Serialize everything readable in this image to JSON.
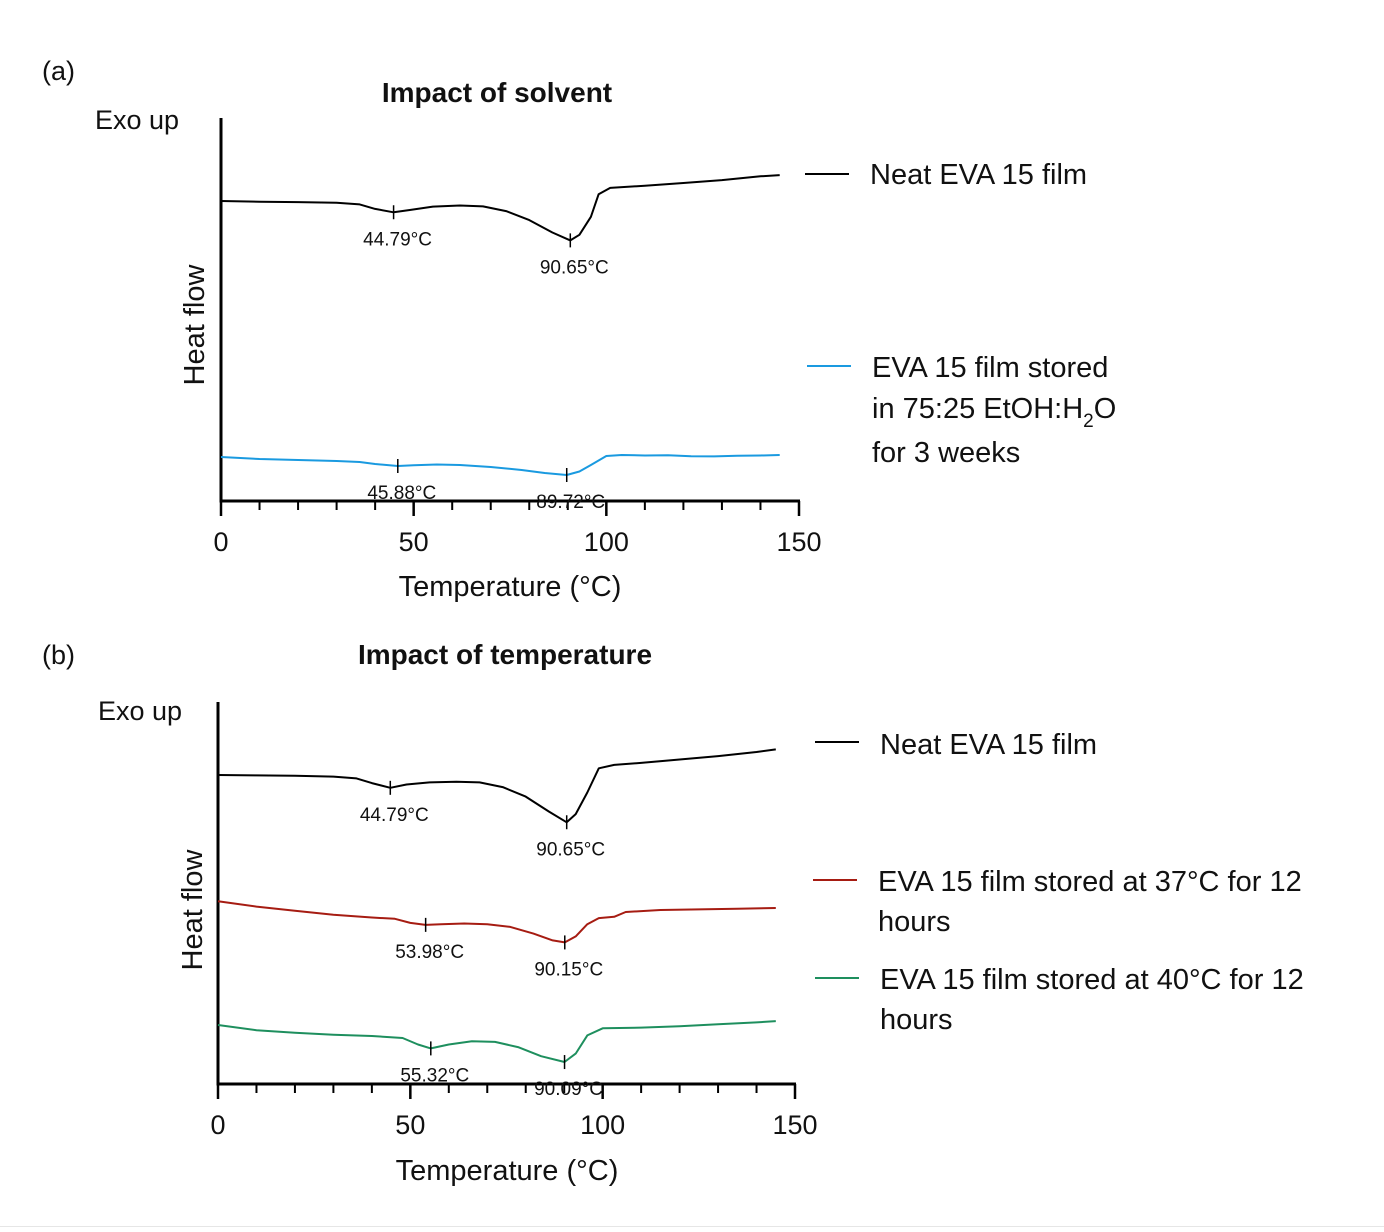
{
  "chart_data": [
    {
      "type": "line",
      "panel_label": "(a)",
      "title": "Impact of solvent",
      "exo_label": "Exo up",
      "ylabel": "Heat flow",
      "xlabel": "Temperature (°C)",
      "xlim": [
        0,
        150
      ],
      "x_ticks": [
        0,
        50,
        100,
        150
      ],
      "series": [
        {
          "name_lines": [
            "Neat EVA 15 film"
          ],
          "color": "#000000",
          "points": [
            [
              0,
              0
            ],
            [
              10,
              -0.3
            ],
            [
              20,
              -0.5
            ],
            [
              30,
              -0.8
            ],
            [
              36,
              -1.5
            ],
            [
              40,
              -3.5
            ],
            [
              44.79,
              -5
            ],
            [
              49,
              -4
            ],
            [
              55,
              -2.5
            ],
            [
              62,
              -2
            ],
            [
              68,
              -2.4
            ],
            [
              74,
              -4.5
            ],
            [
              80,
              -8.5
            ],
            [
              86,
              -14
            ],
            [
              90.65,
              -17.5
            ],
            [
              93,
              -15
            ],
            [
              96,
              -7
            ],
            [
              98,
              3
            ],
            [
              101,
              5.8
            ],
            [
              110,
              6.8
            ],
            [
              120,
              8
            ],
            [
              130,
              9.3
            ],
            [
              140,
              11
            ],
            [
              145,
              11.5
            ]
          ],
          "annotations": [
            {
              "x": 44.79,
              "label": "44.79°C"
            },
            {
              "x": 90.65,
              "label": "90.65°C"
            }
          ]
        },
        {
          "name_lines": [
            "EVA 15 film stored",
            "in 75:25 EtOH:H",
            "O",
            "for 3 weeks"
          ],
          "color": "#1a9ae0",
          "points": [
            [
              0,
              -86
            ],
            [
              10,
              -88
            ],
            [
              20,
              -89
            ],
            [
              30,
              -90
            ],
            [
              36,
              -91
            ],
            [
              40,
              -93
            ],
            [
              45.88,
              -95
            ],
            [
              50,
              -94.3
            ],
            [
              56,
              -93.5
            ],
            [
              62,
              -94
            ],
            [
              70,
              -96
            ],
            [
              78,
              -99
            ],
            [
              84,
              -102
            ],
            [
              89.72,
              -104
            ],
            [
              93,
              -100.5
            ],
            [
              96,
              -94
            ],
            [
              100,
              -85
            ],
            [
              104,
              -84
            ],
            [
              110,
              -84.5
            ],
            [
              116,
              -84.3
            ],
            [
              122,
              -85.2
            ],
            [
              128,
              -85.4
            ],
            [
              134,
              -84.8
            ],
            [
              140,
              -84.5
            ],
            [
              145,
              -84
            ]
          ],
          "annotations": [
            {
              "x": 45.88,
              "label": "45.88°C"
            },
            {
              "x": 89.72,
              "label": "89.72°C"
            }
          ]
        }
      ]
    },
    {
      "type": "line",
      "panel_label": "(b)",
      "title": "Impact of temperature",
      "exo_label": "Exo up",
      "ylabel": "Heat flow",
      "xlabel": "Temperature (°C)",
      "xlim": [
        0,
        150
      ],
      "x_ticks": [
        0,
        50,
        100,
        150
      ],
      "series": [
        {
          "name_lines": [
            "Neat EVA 15 film"
          ],
          "color": "#000000",
          "points": [
            [
              0,
              0
            ],
            [
              10,
              -0.3
            ],
            [
              20,
              -0.6
            ],
            [
              30,
              -1.2
            ],
            [
              36,
              -2.5
            ],
            [
              40,
              -6
            ],
            [
              44.79,
              -9.5
            ],
            [
              49,
              -7
            ],
            [
              55,
              -5.5
            ],
            [
              62,
              -5
            ],
            [
              68,
              -5.5
            ],
            [
              74,
              -9
            ],
            [
              80,
              -16
            ],
            [
              86,
              -27
            ],
            [
              90.65,
              -35
            ],
            [
              93,
              -29
            ],
            [
              96,
              -13
            ],
            [
              99,
              5
            ],
            [
              103,
              7.5
            ],
            [
              110,
              9
            ],
            [
              120,
              11.5
            ],
            [
              130,
              14
            ],
            [
              140,
              17
            ],
            [
              145,
              19
            ]
          ],
          "annotations": [
            {
              "x": 44.79,
              "label": "44.79°C"
            },
            {
              "x": 90.65,
              "label": "90.65°C"
            }
          ]
        },
        {
          "name_lines": [
            "EVA 15 film stored at 37°C for 12",
            "hours"
          ],
          "color": "#a61c12",
          "points": [
            [
              0,
              -75
            ],
            [
              10,
              -79
            ],
            [
              20,
              -82
            ],
            [
              30,
              -85
            ],
            [
              40,
              -87
            ],
            [
              46,
              -88
            ],
            [
              50,
              -91
            ],
            [
              53.98,
              -92.5
            ],
            [
              58,
              -92
            ],
            [
              64,
              -91.5
            ],
            [
              70,
              -92
            ],
            [
              76,
              -94
            ],
            [
              82,
              -99
            ],
            [
              87,
              -104
            ],
            [
              90.15,
              -105.5
            ],
            [
              93,
              -101
            ],
            [
              96,
              -92
            ],
            [
              99,
              -87.5
            ],
            [
              103,
              -86.5
            ],
            [
              106,
              -83
            ],
            [
              115,
              -81.5
            ],
            [
              125,
              -81
            ],
            [
              135,
              -80.5
            ],
            [
              145,
              -80
            ]
          ],
          "annotations": [
            {
              "x": 53.98,
              "label": "53.98°C"
            },
            {
              "x": 90.15,
              "label": "90.15°C"
            }
          ]
        },
        {
          "name_lines": [
            "EVA 15 film stored at 40°C for 12",
            "hours"
          ],
          "color": "#1e8f5e",
          "points": [
            [
              0,
              -150
            ],
            [
              10,
              -154
            ],
            [
              20,
              -156
            ],
            [
              30,
              -157.5
            ],
            [
              40,
              -158.5
            ],
            [
              48,
              -160
            ],
            [
              52,
              -165
            ],
            [
              55.32,
              -168
            ],
            [
              60,
              -165
            ],
            [
              66,
              -162.5
            ],
            [
              72,
              -163
            ],
            [
              78,
              -167
            ],
            [
              84,
              -174
            ],
            [
              90.09,
              -178.5
            ],
            [
              93,
              -172
            ],
            [
              96,
              -158
            ],
            [
              100,
              -152.5
            ],
            [
              110,
              -152
            ],
            [
              120,
              -151
            ],
            [
              130,
              -149.5
            ],
            [
              140,
              -148
            ],
            [
              145,
              -147
            ]
          ],
          "annotations": [
            {
              "x": 55.32,
              "label": "55.32°C"
            },
            {
              "x": 90.09,
              "label": "90.09°C"
            }
          ]
        }
      ]
    }
  ]
}
